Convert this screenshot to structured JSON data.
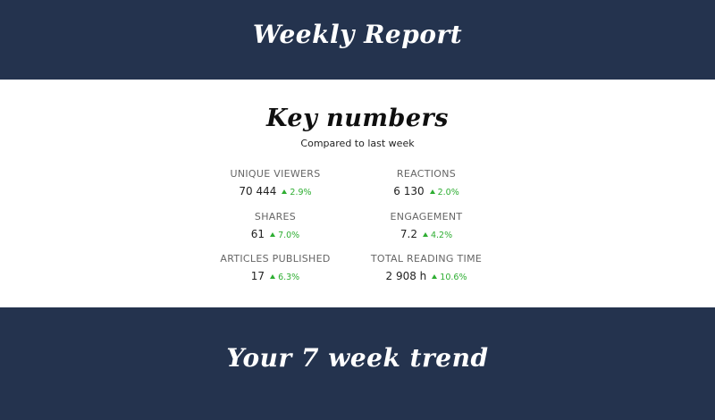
{
  "header": {
    "title": "Weekly Report"
  },
  "key_numbers": {
    "title": "Key numbers",
    "subtitle": "Compared to last week",
    "metrics": [
      {
        "label": "UNIQUE VIEWERS",
        "value": "70 444",
        "change": "2.9%"
      },
      {
        "label": "REACTIONS",
        "value": "6 130",
        "change": "2.0%"
      },
      {
        "label": "SHARES",
        "value": "61",
        "change": "7.0%"
      },
      {
        "label": "ENGAGEMENT",
        "value": "7.2",
        "change": "4.2%"
      },
      {
        "label": "ARTICLES PUBLISHED",
        "value": "17",
        "change": "6.3%"
      },
      {
        "label": "TOTAL READING TIME",
        "value": "2 908 h",
        "change": "10.6%"
      }
    ]
  },
  "trend": {
    "title": "Your 7 week trend"
  },
  "colors": {
    "header_bg": "#24334e",
    "positive_change": "#2eae32"
  }
}
